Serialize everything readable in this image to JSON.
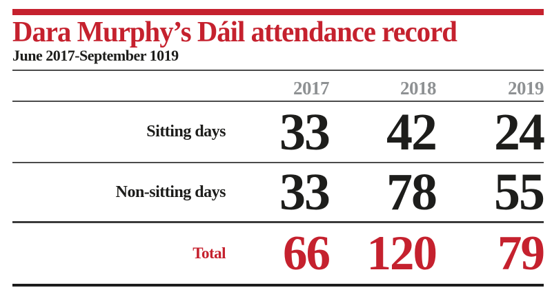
{
  "header": {
    "title": "Dara Murphy’s Dáil attendance record",
    "subtitle": "June 2017-September 1019"
  },
  "colors": {
    "accent_red": "#c5212e",
    "year_gray": "#8e9193",
    "text_black": "#1d1d1b"
  },
  "table": {
    "columns": [
      "2017",
      "2018",
      "2019"
    ],
    "rows": [
      {
        "label": "Sitting days",
        "values": [
          "33",
          "42",
          "24"
        ]
      },
      {
        "label": "Non-sitting days",
        "values": [
          "33",
          "78",
          "55"
        ]
      }
    ],
    "total": {
      "label": "Total",
      "values": [
        "66",
        "120",
        "79"
      ]
    }
  },
  "chart_data": {
    "type": "table",
    "title": "Dara Murphy’s Dáil attendance record",
    "subtitle": "June 2017-September 1019",
    "categories": [
      "2017",
      "2018",
      "2019"
    ],
    "series": [
      {
        "name": "Sitting days",
        "values": [
          33,
          42,
          24
        ]
      },
      {
        "name": "Non-sitting days",
        "values": [
          33,
          78,
          55
        ]
      },
      {
        "name": "Total",
        "values": [
          66,
          120,
          79
        ]
      }
    ],
    "layout": {
      "value_columns_align": "right",
      "total_row_color": "#c5212e"
    }
  }
}
